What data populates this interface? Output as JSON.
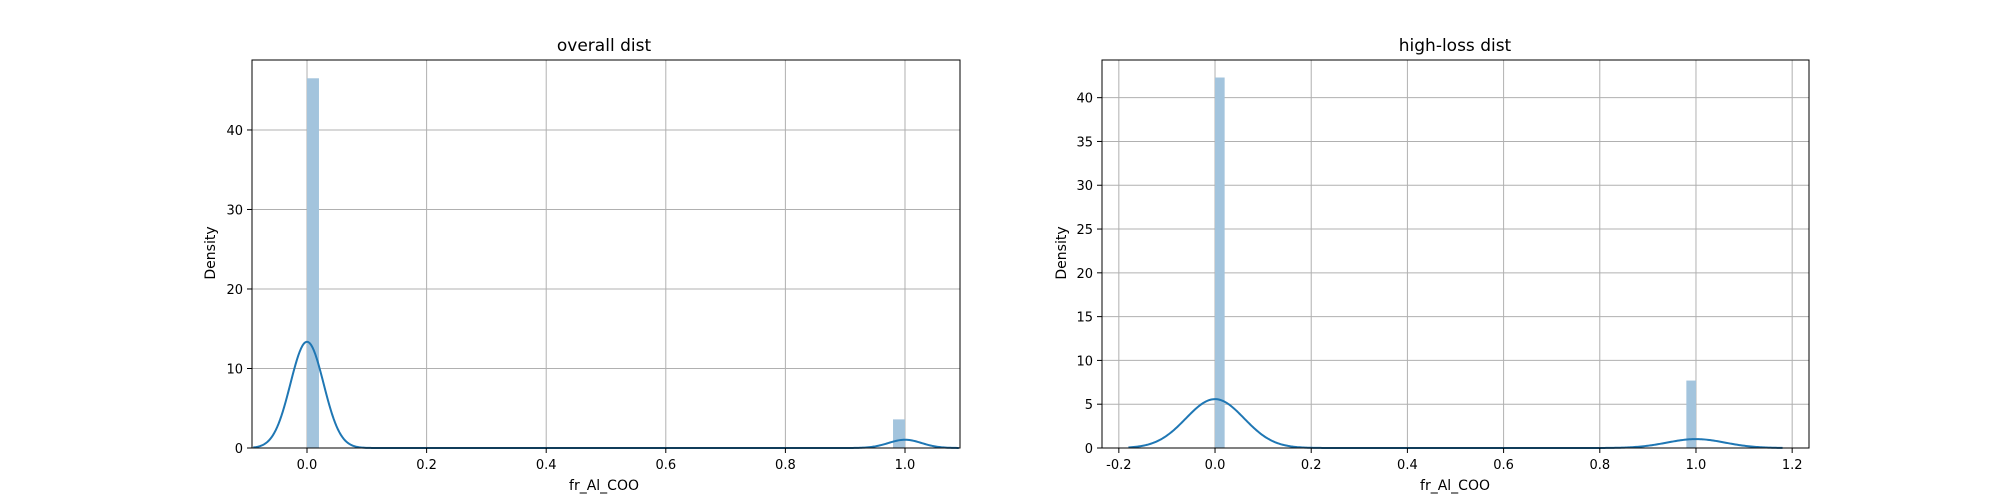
{
  "chart_data": [
    {
      "type": "bar",
      "title": "overall dist",
      "xlabel": "fr_Al_COO",
      "ylabel": "Density",
      "xlim": [
        -0.092,
        1.092
      ],
      "ylim": [
        0,
        48.8
      ],
      "xticks": [
        0.0,
        0.2,
        0.4,
        0.6,
        0.8,
        1.0
      ],
      "xtick_labels": [
        "0.0",
        "0.2",
        "0.4",
        "0.6",
        "0.8",
        "1.0"
      ],
      "yticks": [
        0,
        10,
        20,
        30,
        40
      ],
      "ytick_labels": [
        "0",
        "10",
        "20",
        "30",
        "40"
      ],
      "grid": true,
      "bar_color": "#a3c4dd",
      "line_color": "#1f77b4",
      "histogram": [
        {
          "x0": 0.0,
          "x1": 0.02,
          "density": 46.5
        },
        {
          "x0": 0.98,
          "x1": 1.0,
          "density": 3.6
        }
      ],
      "kde": {
        "components": [
          {
            "weight": 0.928,
            "mean": 0.0,
            "sd": 0.0277
          },
          {
            "weight": 0.072,
            "mean": 1.0,
            "sd": 0.0277
          }
        ],
        "x_range": [
          -0.09,
          1.09
        ]
      }
    },
    {
      "type": "bar",
      "title": "high-loss dist",
      "xlabel": "fr_Al_COO",
      "ylabel": "Density",
      "xlim": [
        -0.235,
        1.235
      ],
      "ylim": [
        0,
        44.3
      ],
      "xticks": [
        -0.2,
        0.0,
        0.2,
        0.4,
        0.6,
        0.8,
        1.0,
        1.2
      ],
      "xtick_labels": [
        "-0.2",
        "0.0",
        "0.2",
        "0.4",
        "0.6",
        "0.8",
        "1.0",
        "1.2"
      ],
      "yticks": [
        0,
        5,
        10,
        15,
        20,
        25,
        30,
        35,
        40
      ],
      "ytick_labels": [
        "0",
        "5",
        "10",
        "15",
        "20",
        "25",
        "30",
        "35",
        "40"
      ],
      "grid": true,
      "bar_color": "#a3c4dd",
      "line_color": "#1f77b4",
      "histogram": [
        {
          "x0": 0.0,
          "x1": 0.02,
          "density": 42.3
        },
        {
          "x0": 0.98,
          "x1": 1.0,
          "density": 7.7
        }
      ],
      "kde": {
        "components": [
          {
            "weight": 0.846,
            "mean": 0.0,
            "sd": 0.0605
          },
          {
            "weight": 0.154,
            "mean": 1.0,
            "sd": 0.0605
          }
        ],
        "x_range": [
          -0.18,
          1.18
        ]
      }
    }
  ]
}
